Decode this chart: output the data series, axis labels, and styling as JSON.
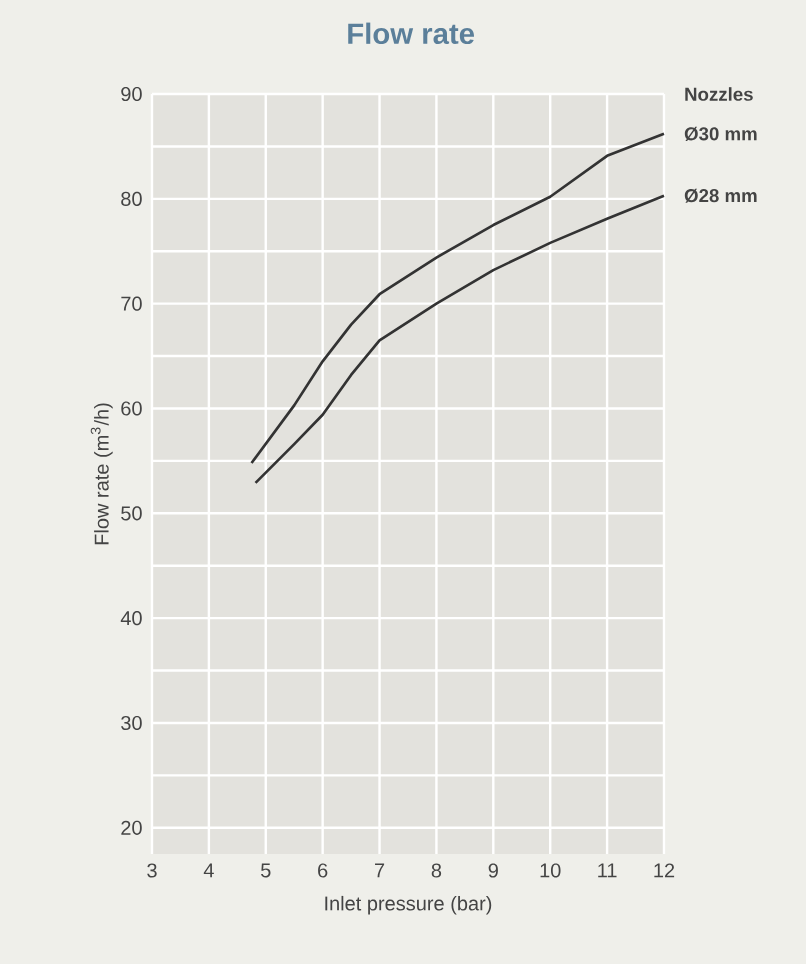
{
  "chart_data": {
    "type": "line",
    "title": "Flow rate",
    "xlabel": "Inlet pressure (bar)",
    "ylabel": "Flow rate (m$^{3}$/h)",
    "legend_title": "Nozzles",
    "series": [
      {
        "name": "Ø30 mm",
        "color": "#333333",
        "x": [
          4.75,
          5.5,
          6,
          6.5,
          7,
          8,
          9,
          10,
          11,
          12
        ],
        "values": [
          54.8,
          60.3,
          64.5,
          68,
          70.9,
          74.4,
          77.5,
          80.2,
          84.1,
          86.2
        ]
      },
      {
        "name": "Ø28 mm",
        "color": "#333333",
        "x": [
          4.82,
          5.5,
          6,
          6.5,
          7,
          8,
          9,
          10,
          11,
          12
        ],
        "values": [
          52.9,
          56.6,
          59.4,
          63.2,
          66.5,
          70.0,
          73.2,
          75.8,
          78.1,
          80.3
        ]
      }
    ],
    "xlim": [
      3,
      12
    ],
    "ylim": [
      17.5,
      90
    ],
    "xticks": [
      3,
      4,
      5,
      6,
      7,
      8,
      9,
      10,
      11,
      12
    ],
    "yticks": [
      20,
      30,
      40,
      50,
      60,
      70,
      80,
      90
    ],
    "grid": true,
    "legend": "right",
    "line_style": "solid"
  }
}
